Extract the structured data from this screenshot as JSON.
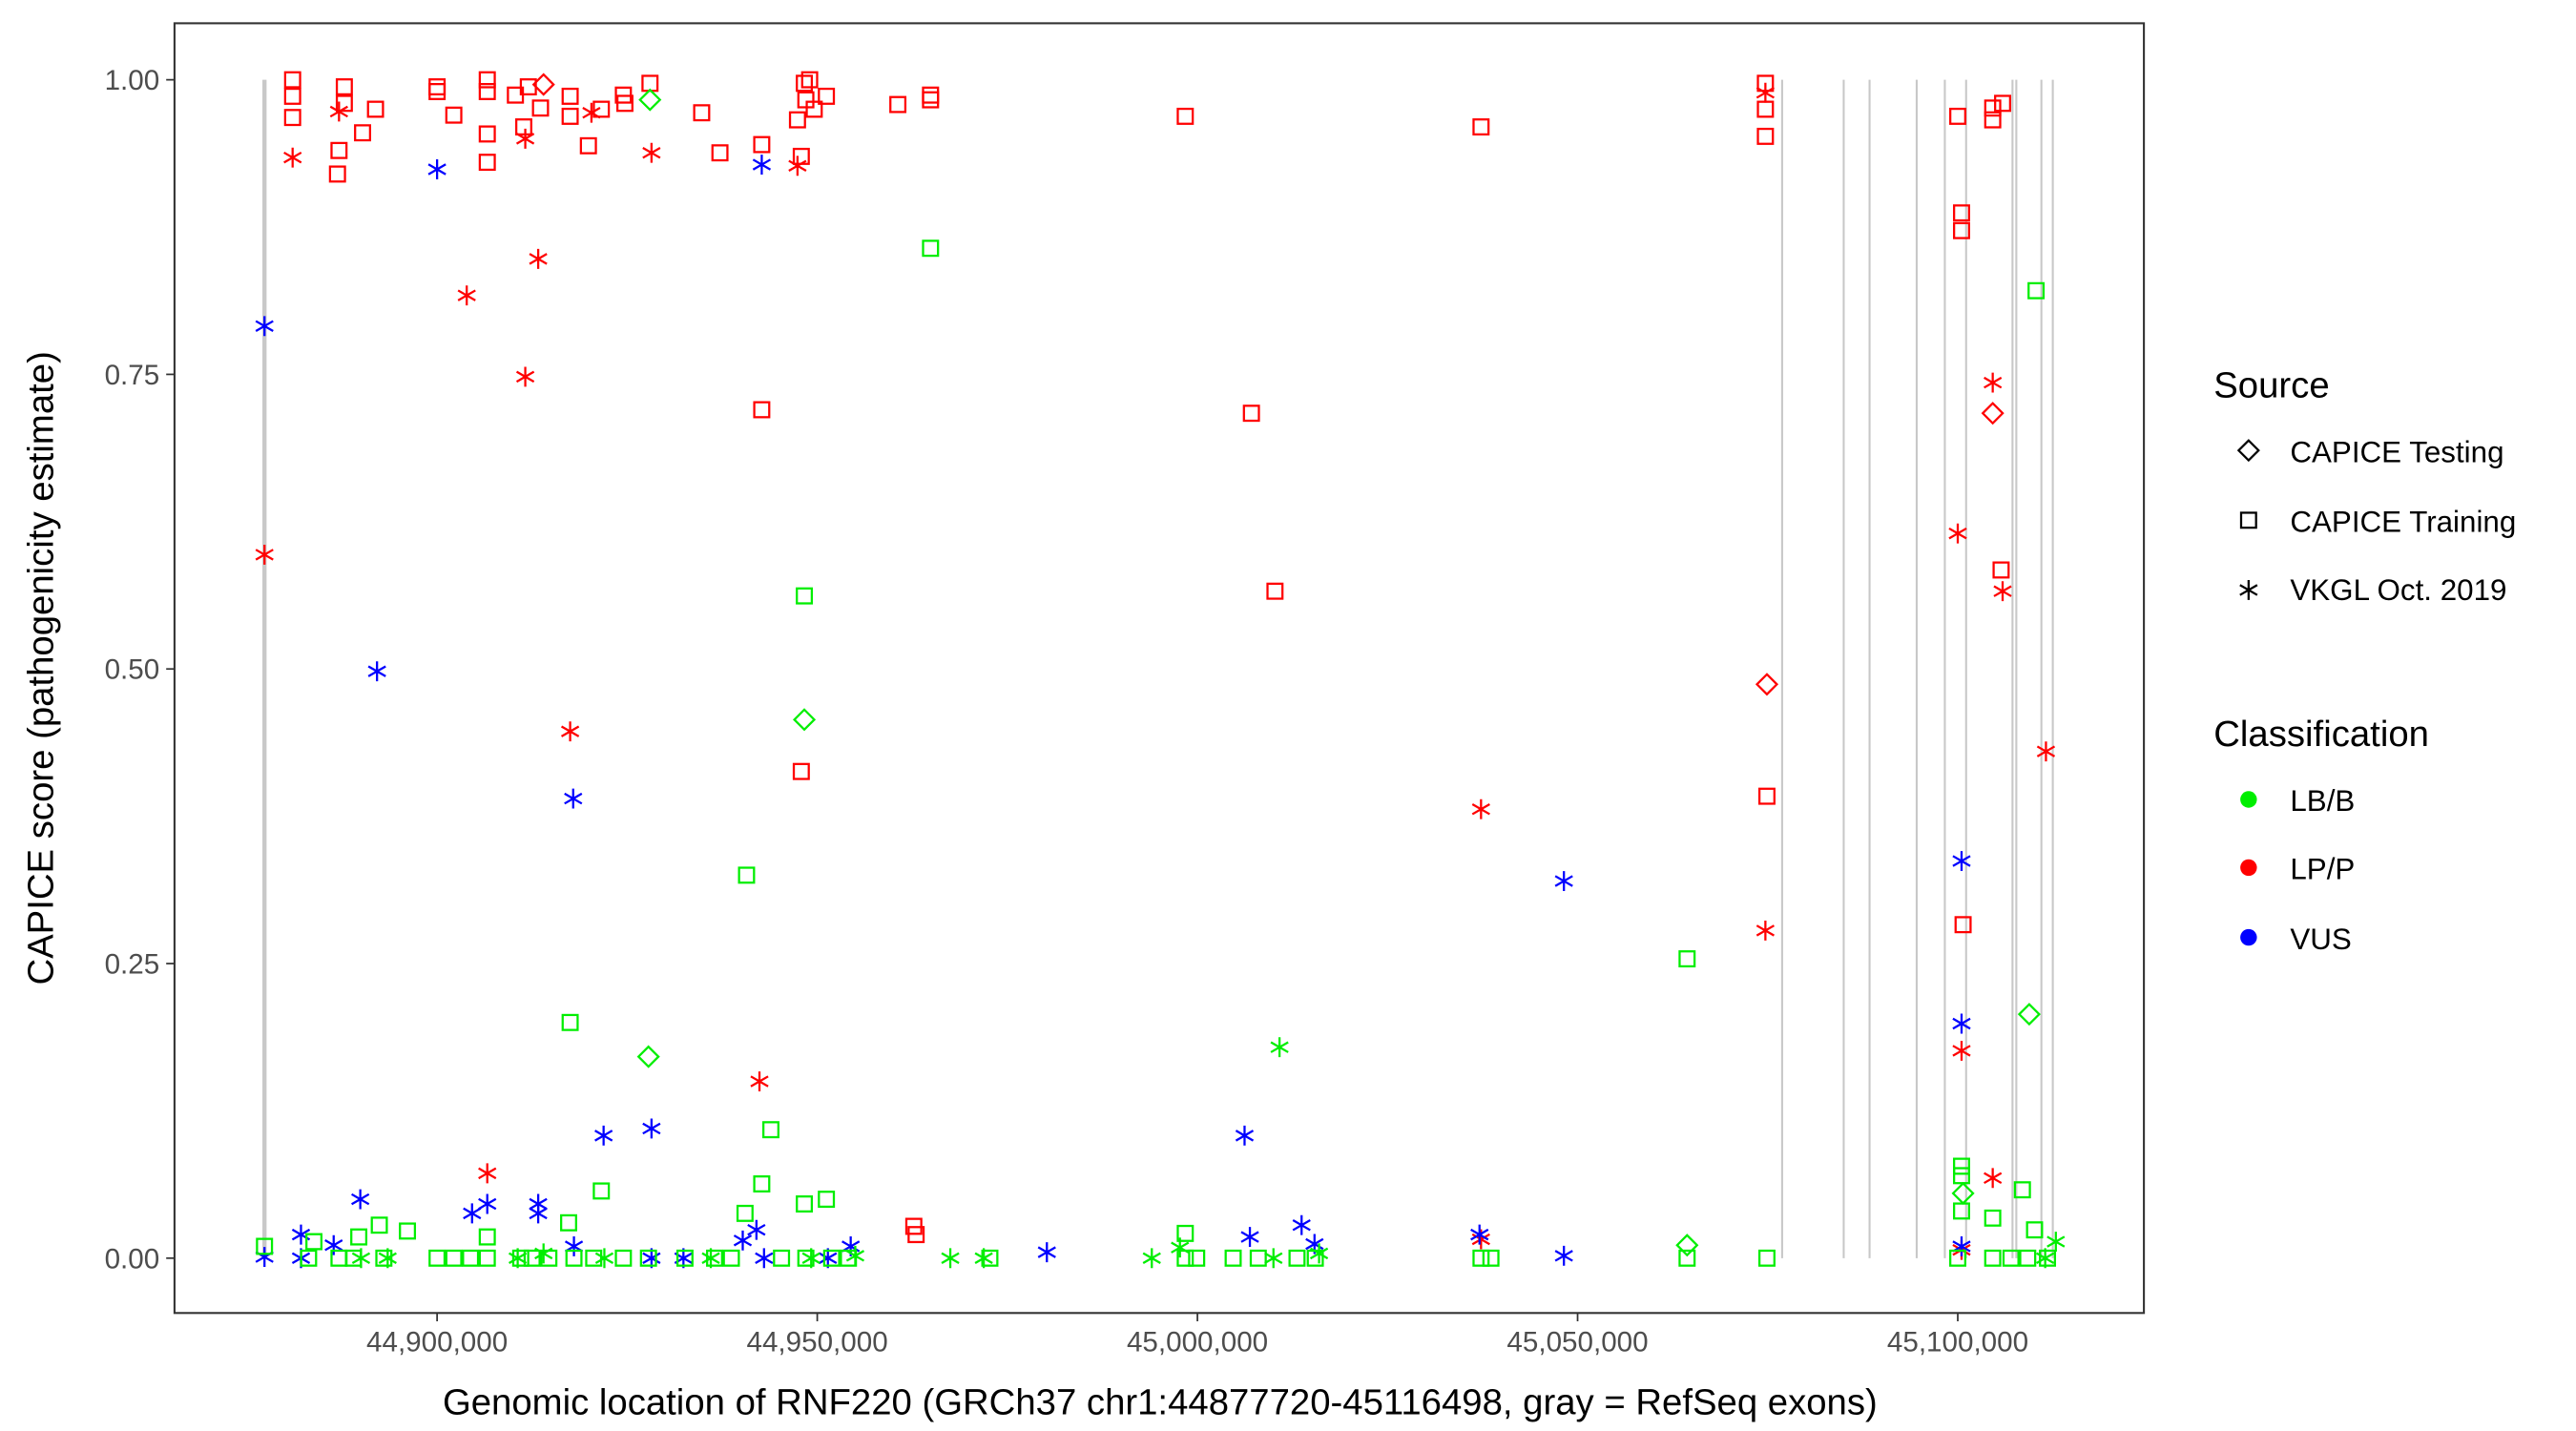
{
  "chart_data": {
    "type": "scatter",
    "title": "",
    "xlabel": "Genomic location of RNF220 (GRCh37 chr1:44877720-45116498, gray = RefSeq exons)",
    "ylabel": "CAPICE score (pathogenicity estimate)",
    "xlim": [
      44865000,
      45124000
    ],
    "ylim": [
      -0.05,
      1.05
    ],
    "x_ticks": [
      44900000,
      44950000,
      45000000,
      45050000,
      45100000
    ],
    "x_tick_labels": [
      "44,900,000",
      "44,950,000",
      "45,000,000",
      "45,050,000",
      "45,100,000"
    ],
    "y_ticks": [
      0,
      0.25,
      0.5,
      0.75,
      1.0
    ],
    "y_tick_labels": [
      "0.00",
      "0.25",
      "0.50",
      "0.75",
      "1.00"
    ],
    "grid": false,
    "legend_position": "right",
    "legend": {
      "source_title": "Source",
      "source": [
        {
          "key": "T",
          "label": "CAPICE Testing",
          "shape": "diamond"
        },
        {
          "key": "R",
          "label": "CAPICE Training",
          "shape": "square"
        },
        {
          "key": "V",
          "label": "VKGL Oct. 2019",
          "shape": "asterisk"
        }
      ],
      "class_title": "Classification",
      "classes": [
        {
          "key": "B",
          "label": "LB/B",
          "color": "#00EE00"
        },
        {
          "key": "P",
          "label": "LP/P",
          "color": "#FF0000"
        },
        {
          "key": "U",
          "label": "VUS",
          "color": "#0000FF"
        }
      ]
    },
    "exons": [
      44877300,
      45076900,
      45085000,
      45088400,
      45094600,
      45098300,
      45101100,
      45107200,
      45107700,
      45111000,
      45112500
    ],
    "points_format": [
      "position",
      "score",
      "source",
      "class"
    ],
    "points": [
      [
        44881000,
        1.0,
        "R",
        "P"
      ],
      [
        44881000,
        0.986,
        "R",
        "P"
      ],
      [
        44881000,
        0.968,
        "R",
        "P"
      ],
      [
        44887100,
        0.94,
        "R",
        "P"
      ],
      [
        44886900,
        0.92,
        "R",
        "P"
      ],
      [
        44887800,
        0.98,
        "R",
        "P"
      ],
      [
        44887800,
        0.994,
        "R",
        "P"
      ],
      [
        44890200,
        0.955,
        "R",
        "P"
      ],
      [
        44891900,
        0.975,
        "R",
        "P"
      ],
      [
        44900000,
        0.994,
        "R",
        "P"
      ],
      [
        44900000,
        0.99,
        "R",
        "P"
      ],
      [
        44902200,
        0.97,
        "R",
        "P"
      ],
      [
        44906600,
        1.0,
        "R",
        "P"
      ],
      [
        44906600,
        0.99,
        "R",
        "P"
      ],
      [
        44906600,
        0.954,
        "R",
        "P"
      ],
      [
        44906600,
        0.93,
        "R",
        "P"
      ],
      [
        44910300,
        0.987,
        "R",
        "P"
      ],
      [
        44911400,
        0.96,
        "R",
        "P"
      ],
      [
        44912000,
        0.994,
        "R",
        "P"
      ],
      [
        44913600,
        0.976,
        "R",
        "P"
      ],
      [
        44917500,
        0.986,
        "R",
        "P"
      ],
      [
        44917500,
        0.969,
        "R",
        "P"
      ],
      [
        44919900,
        0.944,
        "R",
        "P"
      ],
      [
        44921600,
        0.975,
        "R",
        "P"
      ],
      [
        44924500,
        0.987,
        "R",
        "P"
      ],
      [
        44924700,
        0.98,
        "R",
        "P"
      ],
      [
        44928000,
        0.997,
        "R",
        "P"
      ],
      [
        44934800,
        0.972,
        "R",
        "P"
      ],
      [
        44937200,
        0.938,
        "R",
        "P"
      ],
      [
        44942700,
        0.72,
        "R",
        "P"
      ],
      [
        44942700,
        0.945,
        "R",
        "P"
      ],
      [
        44947400,
        0.966,
        "R",
        "P"
      ],
      [
        44947900,
        0.935,
        "R",
        "P"
      ],
      [
        44948300,
        0.997,
        "R",
        "P"
      ],
      [
        44948500,
        0.983,
        "R",
        "P"
      ],
      [
        44949000,
        1.0,
        "R",
        "P"
      ],
      [
        44949600,
        0.975,
        "R",
        "P"
      ],
      [
        44951200,
        0.986,
        "R",
        "P"
      ],
      [
        44947900,
        0.413,
        "R",
        "P"
      ],
      [
        44960600,
        0.979,
        "R",
        "P"
      ],
      [
        44964900,
        0.987,
        "R",
        "P"
      ],
      [
        44964900,
        0.983,
        "R",
        "P"
      ],
      [
        44962700,
        0.027,
        "R",
        "P"
      ],
      [
        44963000,
        0.02,
        "R",
        "P"
      ],
      [
        44998400,
        0.969,
        "R",
        "P"
      ],
      [
        45007100,
        0.717,
        "R",
        "P"
      ],
      [
        45010200,
        0.566,
        "R",
        "P"
      ],
      [
        45037300,
        0.96,
        "R",
        "P"
      ],
      [
        45074700,
        0.997,
        "R",
        "P"
      ],
      [
        45074700,
        0.975,
        "R",
        "P"
      ],
      [
        45074700,
        0.952,
        "R",
        "P"
      ],
      [
        45074900,
        0.392,
        "R",
        "P"
      ],
      [
        45100000,
        0.969,
        "R",
        "P"
      ],
      [
        45100500,
        0.887,
        "R",
        "P"
      ],
      [
        45100500,
        0.872,
        "R",
        "P"
      ],
      [
        45100700,
        0.283,
        "R",
        "P"
      ],
      [
        45104600,
        0.976,
        "R",
        "P"
      ],
      [
        45104600,
        0.966,
        "R",
        "P"
      ],
      [
        45105900,
        0.98,
        "R",
        "P"
      ],
      [
        45105700,
        0.584,
        "R",
        "P"
      ],
      [
        44914000,
        0.996,
        "T",
        "P"
      ],
      [
        45104600,
        0.717,
        "T",
        "P"
      ],
      [
        45074900,
        0.487,
        "T",
        "P"
      ],
      [
        44881000,
        0.934,
        "V",
        "P"
      ],
      [
        44887100,
        0.973,
        "V",
        "P"
      ],
      [
        44903900,
        0.817,
        "V",
        "P"
      ],
      [
        44911600,
        0.95,
        "V",
        "P"
      ],
      [
        44911600,
        0.748,
        "V",
        "P"
      ],
      [
        44913300,
        0.848,
        "V",
        "P"
      ],
      [
        44917500,
        0.447,
        "V",
        "P"
      ],
      [
        44920300,
        0.972,
        "V",
        "P"
      ],
      [
        44928200,
        0.938,
        "V",
        "P"
      ],
      [
        44906600,
        0.072,
        "V",
        "P"
      ],
      [
        44942400,
        0.15,
        "V",
        "P"
      ],
      [
        44947400,
        0.927,
        "V",
        "P"
      ],
      [
        44877300,
        0.597,
        "V",
        "P"
      ],
      [
        45037300,
        0.381,
        "V",
        "P"
      ],
      [
        45037300,
        0.016,
        "V",
        "P"
      ],
      [
        45074700,
        0.989,
        "V",
        "P"
      ],
      [
        45074700,
        0.278,
        "V",
        "P"
      ],
      [
        45100000,
        0.615,
        "V",
        "P"
      ],
      [
        45100500,
        0.176,
        "V",
        "P"
      ],
      [
        45104600,
        0.743,
        "V",
        "P"
      ],
      [
        45104600,
        0.068,
        "V",
        "P"
      ],
      [
        45105900,
        0.566,
        "V",
        "P"
      ],
      [
        45111600,
        0.43,
        "V",
        "P"
      ],
      [
        45100500,
        0.007,
        "V",
        "P"
      ],
      [
        44877300,
        0.791,
        "V",
        "U"
      ],
      [
        44892100,
        0.498,
        "V",
        "U"
      ],
      [
        44900000,
        0.924,
        "V",
        "U"
      ],
      [
        44942700,
        0.928,
        "V",
        "U"
      ],
      [
        44917900,
        0.39,
        "V",
        "U"
      ],
      [
        44921900,
        0.104,
        "V",
        "U"
      ],
      [
        44928200,
        0.11,
        "V",
        "U"
      ],
      [
        44889900,
        0.05,
        "V",
        "U"
      ],
      [
        44906600,
        0.046,
        "V",
        "U"
      ],
      [
        44904600,
        0.038,
        "V",
        "U"
      ],
      [
        44913300,
        0.046,
        "V",
        "U"
      ],
      [
        44913300,
        0.038,
        "V",
        "U"
      ],
      [
        44882100,
        0.02,
        "V",
        "U"
      ],
      [
        44877300,
        0.001,
        "V",
        "U"
      ],
      [
        44886400,
        0.011,
        "V",
        "U"
      ],
      [
        44918000,
        0.01,
        "V",
        "U"
      ],
      [
        44940200,
        0.015,
        "V",
        "U"
      ],
      [
        44942000,
        0.024,
        "V",
        "U"
      ],
      [
        44932400,
        0.0,
        "V",
        "U"
      ],
      [
        44951400,
        0.0,
        "V",
        "U"
      ],
      [
        44954400,
        0.01,
        "V",
        "U"
      ],
      [
        44980200,
        0.005,
        "V",
        "U"
      ],
      [
        45006200,
        0.104,
        "V",
        "U"
      ],
      [
        45006900,
        0.018,
        "V",
        "U"
      ],
      [
        45013700,
        0.028,
        "V",
        "U"
      ],
      [
        45015400,
        0.012,
        "V",
        "U"
      ],
      [
        45048200,
        0.32,
        "V",
        "U"
      ],
      [
        45048200,
        0.002,
        "V",
        "U"
      ],
      [
        45037100,
        0.02,
        "V",
        "U"
      ],
      [
        45100500,
        0.337,
        "V",
        "U"
      ],
      [
        45100500,
        0.199,
        "V",
        "U"
      ],
      [
        45100500,
        0.01,
        "V",
        "U"
      ],
      [
        44928200,
        0.0,
        "V",
        "U"
      ],
      [
        44882100,
        0.0,
        "V",
        "U"
      ],
      [
        44943000,
        0.0,
        "V",
        "U"
      ],
      [
        44964900,
        0.857,
        "R",
        "B"
      ],
      [
        44948300,
        0.562,
        "R",
        "B"
      ],
      [
        44940700,
        0.325,
        "R",
        "B"
      ],
      [
        44917500,
        0.2,
        "R",
        "B"
      ],
      [
        44943900,
        0.109,
        "R",
        "B"
      ],
      [
        44942700,
        0.063,
        "R",
        "B"
      ],
      [
        44951200,
        0.05,
        "R",
        "B"
      ],
      [
        44948300,
        0.046,
        "R",
        "B"
      ],
      [
        44940500,
        0.038,
        "R",
        "B"
      ],
      [
        44921600,
        0.057,
        "R",
        "B"
      ],
      [
        44917300,
        0.03,
        "R",
        "B"
      ],
      [
        45064400,
        0.254,
        "R",
        "B"
      ],
      [
        45110300,
        0.821,
        "R",
        "B"
      ],
      [
        45100500,
        0.078,
        "R",
        "B"
      ],
      [
        45100500,
        0.07,
        "R",
        "B"
      ],
      [
        45100500,
        0.04,
        "R",
        "B"
      ],
      [
        45108500,
        0.058,
        "R",
        "B"
      ],
      [
        45104600,
        0.034,
        "R",
        "B"
      ],
      [
        45110100,
        0.024,
        "R",
        "B"
      ],
      [
        44998400,
        0.021,
        "R",
        "B"
      ],
      [
        44896100,
        0.023,
        "R",
        "B"
      ],
      [
        44892400,
        0.028,
        "R",
        "B"
      ],
      [
        44889700,
        0.018,
        "R",
        "B"
      ],
      [
        44883800,
        0.014,
        "R",
        "B"
      ],
      [
        44906600,
        0.018,
        "R",
        "B"
      ],
      [
        44877300,
        0.01,
        "R",
        "B"
      ],
      [
        44883100,
        0.0,
        "R",
        "B"
      ],
      [
        44887100,
        0.0,
        "R",
        "B"
      ],
      [
        44889000,
        0.0,
        "R",
        "B"
      ],
      [
        44893000,
        0.0,
        "R",
        "B"
      ],
      [
        44900000,
        0.0,
        "R",
        "B"
      ],
      [
        44902200,
        0.0,
        "R",
        "B"
      ],
      [
        44904400,
        0.0,
        "R",
        "B"
      ],
      [
        44906600,
        0.0,
        "R",
        "B"
      ],
      [
        44911000,
        0.0,
        "R",
        "B"
      ],
      [
        44912500,
        0.0,
        "R",
        "B"
      ],
      [
        44914700,
        0.0,
        "R",
        "B"
      ],
      [
        44918000,
        0.0,
        "R",
        "B"
      ],
      [
        44920600,
        0.0,
        "R",
        "B"
      ],
      [
        44924500,
        0.0,
        "R",
        "B"
      ],
      [
        44927800,
        0.0,
        "R",
        "B"
      ],
      [
        44932600,
        0.0,
        "R",
        "B"
      ],
      [
        44936500,
        0.0,
        "R",
        "B"
      ],
      [
        44938700,
        0.0,
        "R",
        "B"
      ],
      [
        44945300,
        0.0,
        "R",
        "B"
      ],
      [
        44948500,
        0.0,
        "R",
        "B"
      ],
      [
        44951900,
        0.0,
        "R",
        "B"
      ],
      [
        44954100,
        0.0,
        "R",
        "B"
      ],
      [
        44972700,
        0.0,
        "R",
        "B"
      ],
      [
        44998400,
        0.0,
        "R",
        "B"
      ],
      [
        44999900,
        0.0,
        "R",
        "B"
      ],
      [
        45004700,
        0.0,
        "R",
        "B"
      ],
      [
        45008000,
        0.0,
        "R",
        "B"
      ],
      [
        45013100,
        0.0,
        "R",
        "B"
      ],
      [
        45015500,
        0.0,
        "R",
        "B"
      ],
      [
        45037300,
        0.0,
        "R",
        "B"
      ],
      [
        45038600,
        0.0,
        "R",
        "B"
      ],
      [
        45064400,
        0.0,
        "R",
        "B"
      ],
      [
        45074900,
        0.0,
        "R",
        "B"
      ],
      [
        45100000,
        0.0,
        "R",
        "B"
      ],
      [
        45104600,
        0.0,
        "R",
        "B"
      ],
      [
        45107000,
        0.0,
        "R",
        "B"
      ],
      [
        45109200,
        0.0,
        "R",
        "B"
      ],
      [
        45111800,
        0.0,
        "R",
        "B"
      ],
      [
        44948300,
        0.457,
        "T",
        "B"
      ],
      [
        44927800,
        0.171,
        "T",
        "B"
      ],
      [
        44928000,
        0.983,
        "T",
        "B"
      ],
      [
        45109400,
        0.207,
        "T",
        "B"
      ],
      [
        45064400,
        0.011,
        "T",
        "B"
      ],
      [
        45100700,
        0.055,
        "T",
        "B"
      ],
      [
        45010800,
        0.179,
        "V",
        "B"
      ],
      [
        44967500,
        0.0,
        "V",
        "B"
      ],
      [
        44971900,
        0.0,
        "V",
        "B"
      ],
      [
        44994000,
        0.0,
        "V",
        "B"
      ],
      [
        44997700,
        0.009,
        "V",
        "B"
      ],
      [
        44890000,
        0.0,
        "V",
        "B"
      ],
      [
        44893500,
        0.0,
        "V",
        "B"
      ],
      [
        44910600,
        0.0,
        "V",
        "B"
      ],
      [
        44914000,
        0.004,
        "V",
        "B"
      ],
      [
        44922000,
        0.0,
        "V",
        "B"
      ],
      [
        44936000,
        0.0,
        "V",
        "B"
      ],
      [
        44949200,
        0.0,
        "V",
        "B"
      ],
      [
        44955000,
        0.002,
        "V",
        "B"
      ],
      [
        45010000,
        0.0,
        "V",
        "B"
      ],
      [
        45016000,
        0.004,
        "V",
        "B"
      ],
      [
        45111500,
        0.0,
        "V",
        "B"
      ],
      [
        45112900,
        0.014,
        "V",
        "B"
      ]
    ]
  }
}
